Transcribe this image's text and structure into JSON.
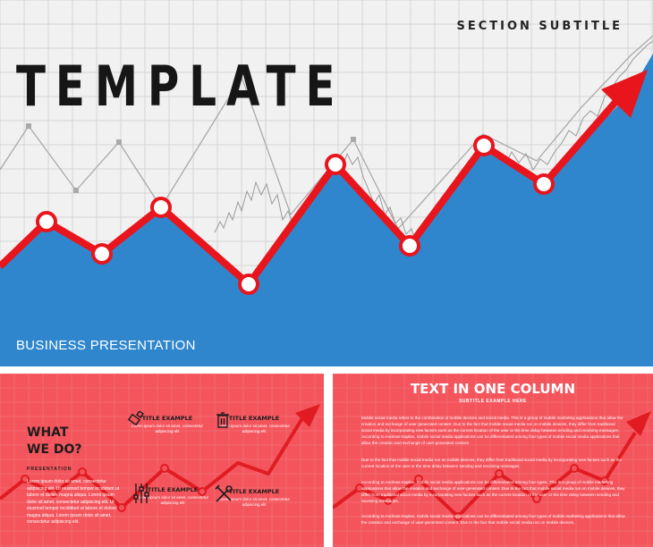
{
  "hero": {
    "title": "TEMPLATE",
    "subtitle": "SECTION SUBTITLE",
    "footer": "BUSINESS PRESENTATION",
    "colors": {
      "background": "#f1f1f1",
      "area": "#2f86cc",
      "line": "#e8151d",
      "grid": "#d5d5d5",
      "marker": "#ffffff"
    }
  },
  "slide_what": {
    "title_line1": "WHAT",
    "title_line2": "WE DO?",
    "subtitle": "PRESENTATION",
    "body": "Lorem ipsum dolor sit amet, consectetur adipiscing elit. Ut eiusmod tempor incididunt ut labore et dolore magna aliqua. Lorem ipsum dolor sit amet, consectetur adipiscing elit. Ut eiusmod tempor incididunt ut labore et dolore magna aliqua. Lorem ipsum dolor sit amet, consectetur adipiscing elit.",
    "features": [
      {
        "icon": "usb-drive-icon",
        "title": "TITLE EXAMPLE",
        "desc": "Lorem ipsum dolor sit amet, consectetur adipiscing elit"
      },
      {
        "icon": "trash-icon",
        "title": "TITLE EXAMPLE",
        "desc": "Lorem ipsum dolor sit amet, consectetur adipiscing elit"
      },
      {
        "icon": "sliders-icon",
        "title": "TITLE EXAMPLE",
        "desc": "Lorem ipsum dolor sit amet, consectetur adipiscing elit"
      },
      {
        "icon": "tools-icon",
        "title": "TITLE EXAMPLE",
        "desc": "Lorem ipsum dolor sit amet, consectetur adipiscing elit"
      }
    ]
  },
  "slide_text": {
    "title": "TEXT IN ONE COLUMN",
    "subtitle": "SUBTITLE EXAMPLE HERE",
    "paragraphs": [
      "Mobile social media refers to the combination of mobile devices and social media. This is a group of mobile marketing applications that allow the creation and exchange of user-generated content. Due to the fact that mobile social media run on mobile devices, they differ from traditional social media by incorporating new factors such as the current location of the user or the time delay between sending and receiving messages. According to Andreas Kaplan, mobile social media applications can be differentiated among four types of mobile social media applications that allow the creation and exchange of user-generated content.",
      "Due to the fact that mobile social media run on mobile devices, they differ from traditional social media by incorporating new factors such as the current location of the user or the time delay between sending and receiving messages.",
      "According to Andreas Kaplan, mobile social media applications can be differentiated among four types. This is a group of mobile marketing applications that allow the creation and exchange of user-generated content. Due to the fact that mobile social media run on mobile devices, they differ from traditional social media by incorporating new factors such as the current location of the user or the time delay between sending and receiving messages.",
      "According to Andreas Kaplan, mobile social media applications can be differentiated among four types of mobile marketing applications that allow the creation and exchange of user-generated content. Due to the fact that mobile social media run on mobile devices."
    ]
  }
}
